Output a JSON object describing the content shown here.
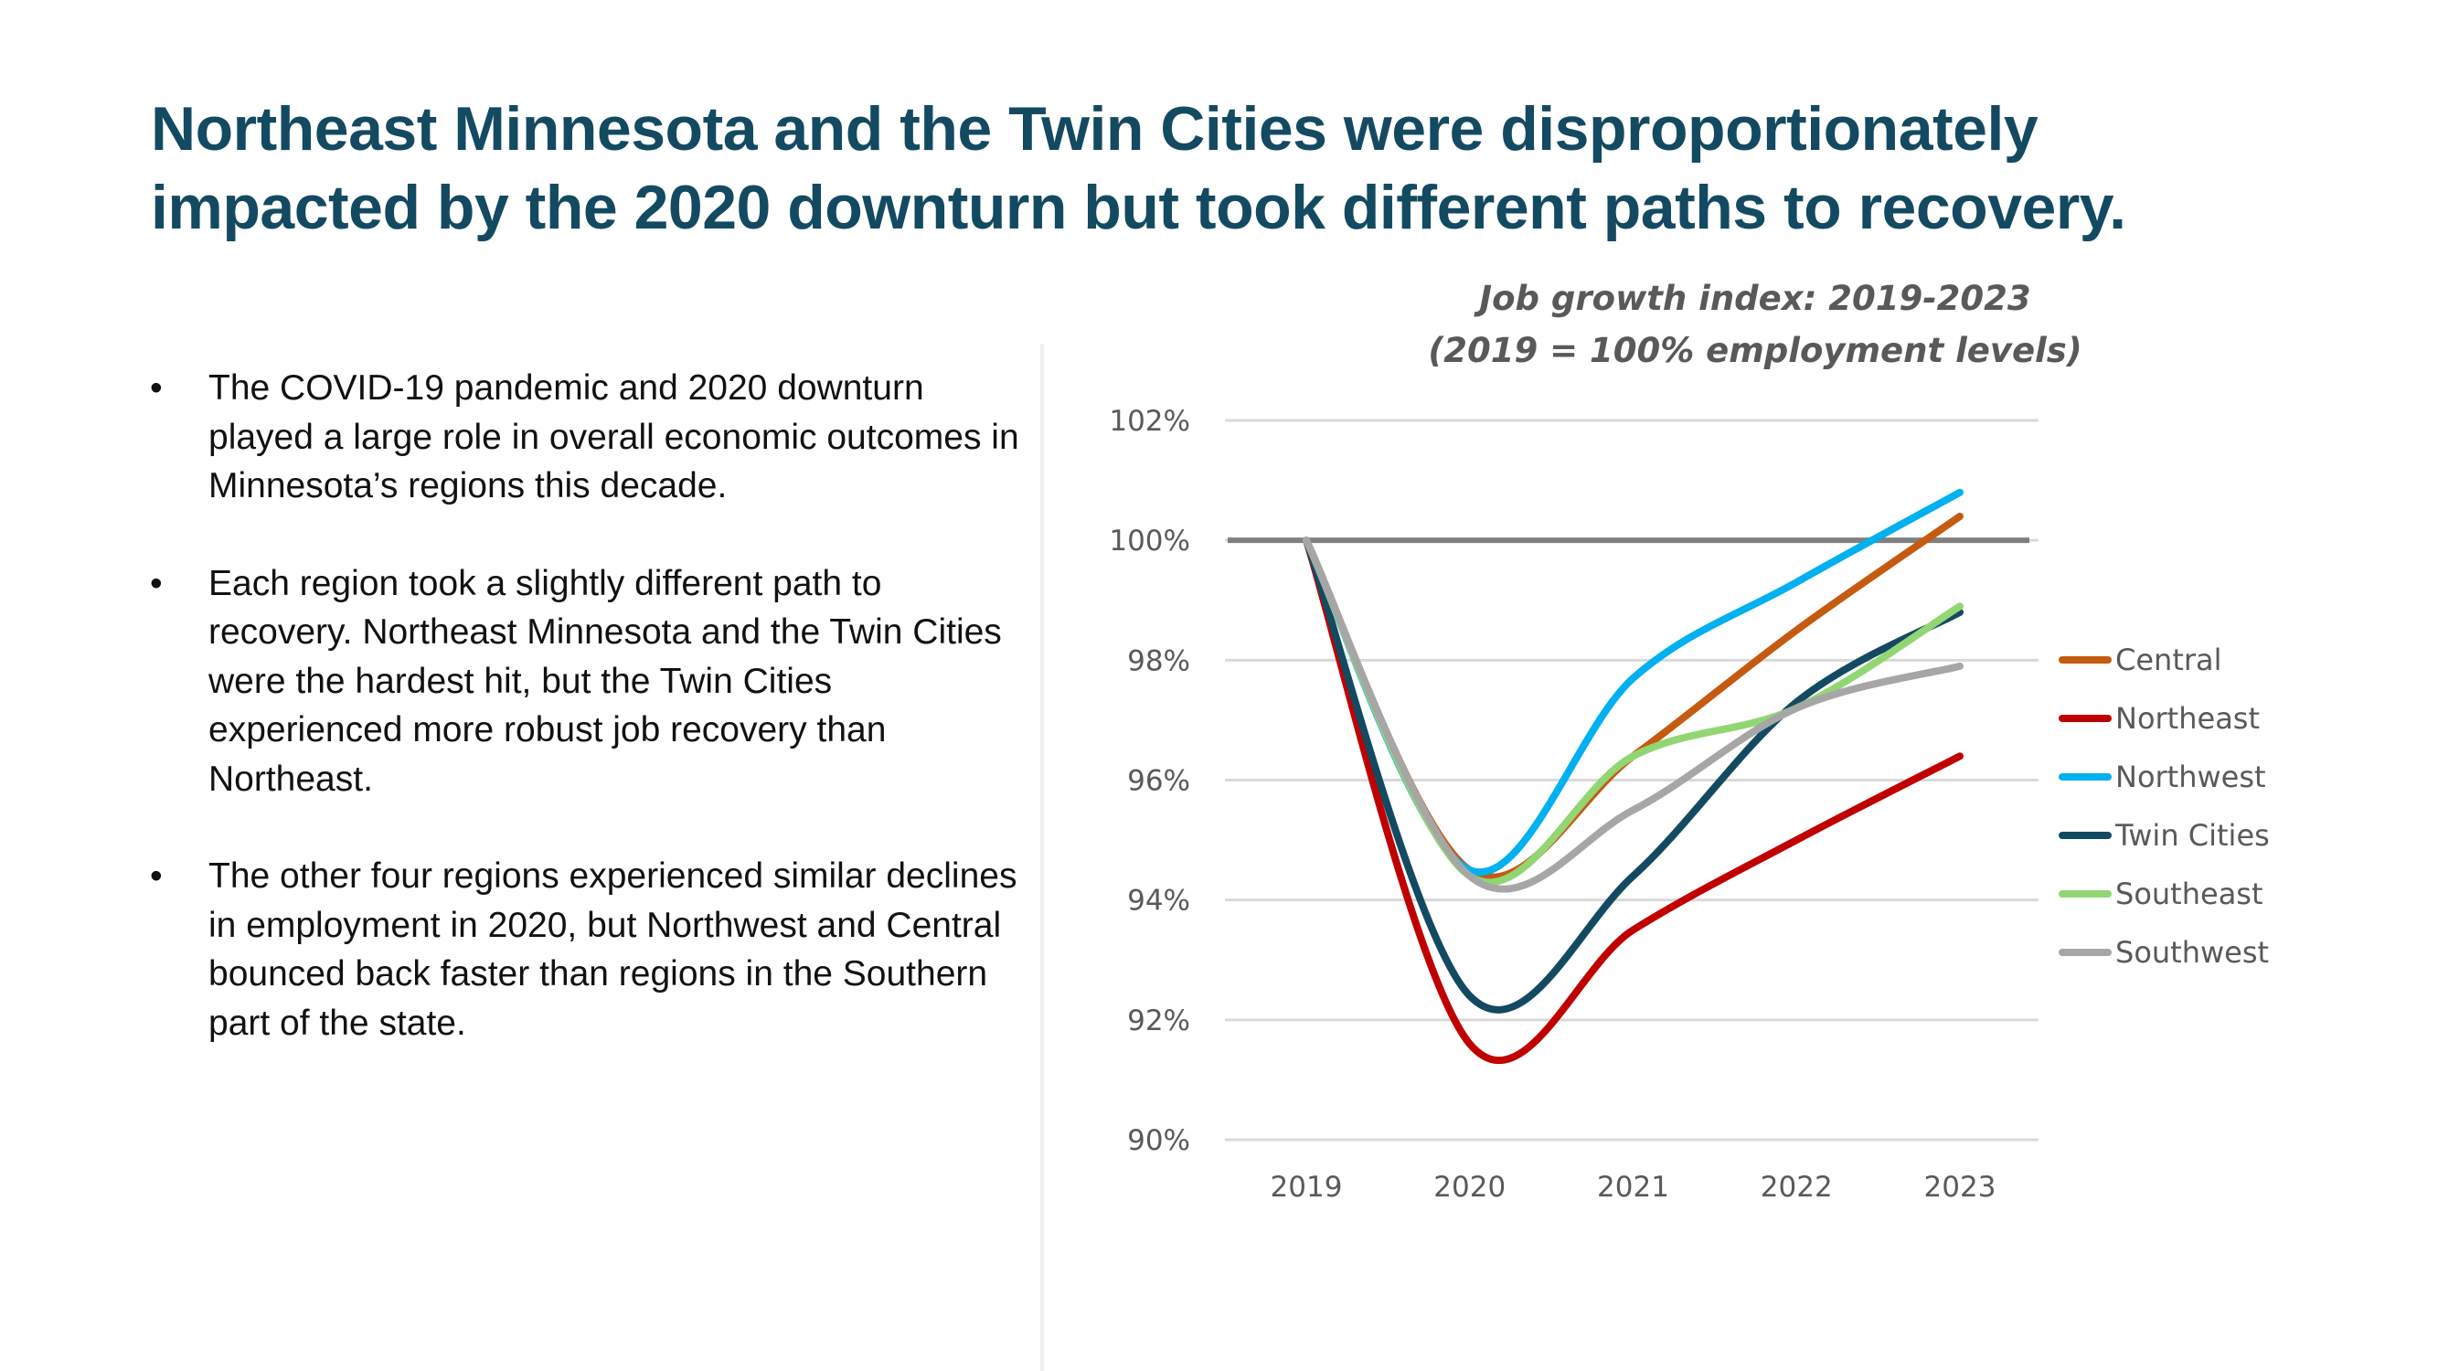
{
  "slide": {
    "title_lines": [
      "Northeast Minnesota and the Twin Cities were disproportionately",
      "impacted by the 2020 downturn but took different paths to recovery."
    ],
    "bullets": [
      {
        "marker": "•",
        "text": "The COVID-19 pandemic and 2020 downturn played a large role in overall economic outcomes in Minnesota’s regions this decade."
      },
      {
        "marker": "•",
        "text": "Each region took a slightly different path to recovery. Northeast Minnesota and the Twin Cities were the hardest hit, but the Twin Cities experienced more robust job recovery than Northeast."
      },
      {
        "marker": "•",
        "text": "The other four regions experienced similar declines in employment in 2020, but Northwest and Central bounced back faster than regions in the Southern part of the state."
      }
    ],
    "colors": {
      "title": "#134a61",
      "text": "#111111"
    }
  },
  "chart_data": {
    "type": "line",
    "title": "Job growth index: 2019-2023",
    "subtitle": "(2019 = 100% employment levels)",
    "xlabel": "",
    "ylabel": "",
    "x": [
      "2019",
      "2020",
      "2021",
      "2022",
      "2023"
    ],
    "ylim": [
      90,
      102
    ],
    "yticks": [
      90,
      92,
      94,
      96,
      98,
      100,
      102
    ],
    "ytick_labels": [
      "90%",
      "92%",
      "94%",
      "96%",
      "98%",
      "100%",
      "102%"
    ],
    "grid": true,
    "smooth": true,
    "reference_line": {
      "value": 100,
      "color": "#808080"
    },
    "legend_position": "right",
    "series": [
      {
        "name": "Central",
        "color": "#c55a11",
        "values": [
          100,
          94.5,
          96.4,
          98.5,
          100.4
        ]
      },
      {
        "name": "Northeast",
        "color": "#c00000",
        "values": [
          100,
          91.6,
          93.5,
          95.0,
          96.4
        ]
      },
      {
        "name": "Northwest",
        "color": "#00b0f0",
        "values": [
          100,
          94.5,
          97.7,
          99.3,
          100.8
        ]
      },
      {
        "name": "Twin Cities",
        "color": "#134a61",
        "values": [
          100,
          92.4,
          94.4,
          97.3,
          98.8
        ]
      },
      {
        "name": "Southeast",
        "color": "#92d673",
        "values": [
          100,
          94.4,
          96.4,
          97.2,
          98.9
        ]
      },
      {
        "name": "Southwest",
        "color": "#a6a6a6",
        "values": [
          100,
          94.4,
          95.5,
          97.2,
          97.9
        ]
      }
    ]
  }
}
